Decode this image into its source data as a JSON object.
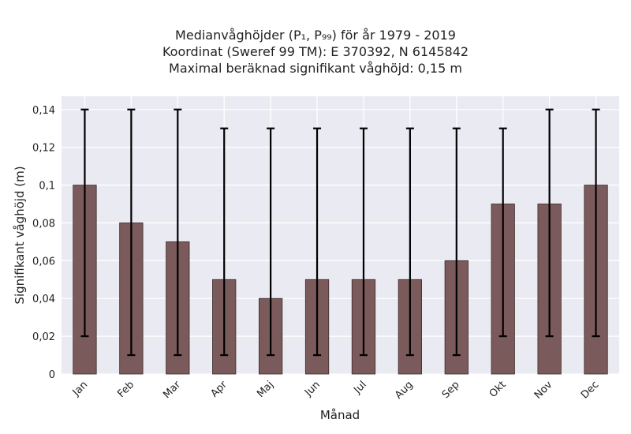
{
  "chart_data": {
    "type": "bar",
    "title_lines": [
      "Medianvåghöjder (P₁, P₉₉) för år 1979 - 2019",
      "Koordinat (Sweref 99 TM): E 370392, N 6145842",
      "Maximal beräknad signifikant våghöjd: 0,15 m"
    ],
    "xlabel": "Månad",
    "ylabel": "Signifikant våghöjd (m)",
    "categories": [
      "Jan",
      "Feb",
      "Mar",
      "Apr",
      "Maj",
      "Jun",
      "Jul",
      "Aug",
      "Sep",
      "Okt",
      "Nov",
      "Dec"
    ],
    "values": [
      0.1,
      0.08,
      0.07,
      0.05,
      0.04,
      0.05,
      0.05,
      0.05,
      0.06,
      0.09,
      0.09,
      0.1
    ],
    "err_low": [
      0.02,
      0.01,
      0.01,
      0.01,
      0.01,
      0.01,
      0.01,
      0.01,
      0.01,
      0.02,
      0.02,
      0.02
    ],
    "err_high": [
      0.14,
      0.14,
      0.14,
      0.13,
      0.13,
      0.13,
      0.13,
      0.13,
      0.13,
      0.13,
      0.14,
      0.14
    ],
    "yticks": [
      0,
      0.02,
      0.04,
      0.06,
      0.08,
      0.1,
      0.12,
      0.14
    ],
    "ytick_labels": [
      "0",
      "0,02",
      "0,04",
      "0,06",
      "0,08",
      "0,1",
      "0,12",
      "0,14"
    ],
    "ylim": [
      0,
      0.147
    ],
    "grid": true,
    "colors": {
      "bar": "#7a5a5a",
      "bar_edge": "#3e2b2b",
      "error_bar": "#000000",
      "background": "#eaeaf2",
      "grid": "#ffffff"
    }
  }
}
